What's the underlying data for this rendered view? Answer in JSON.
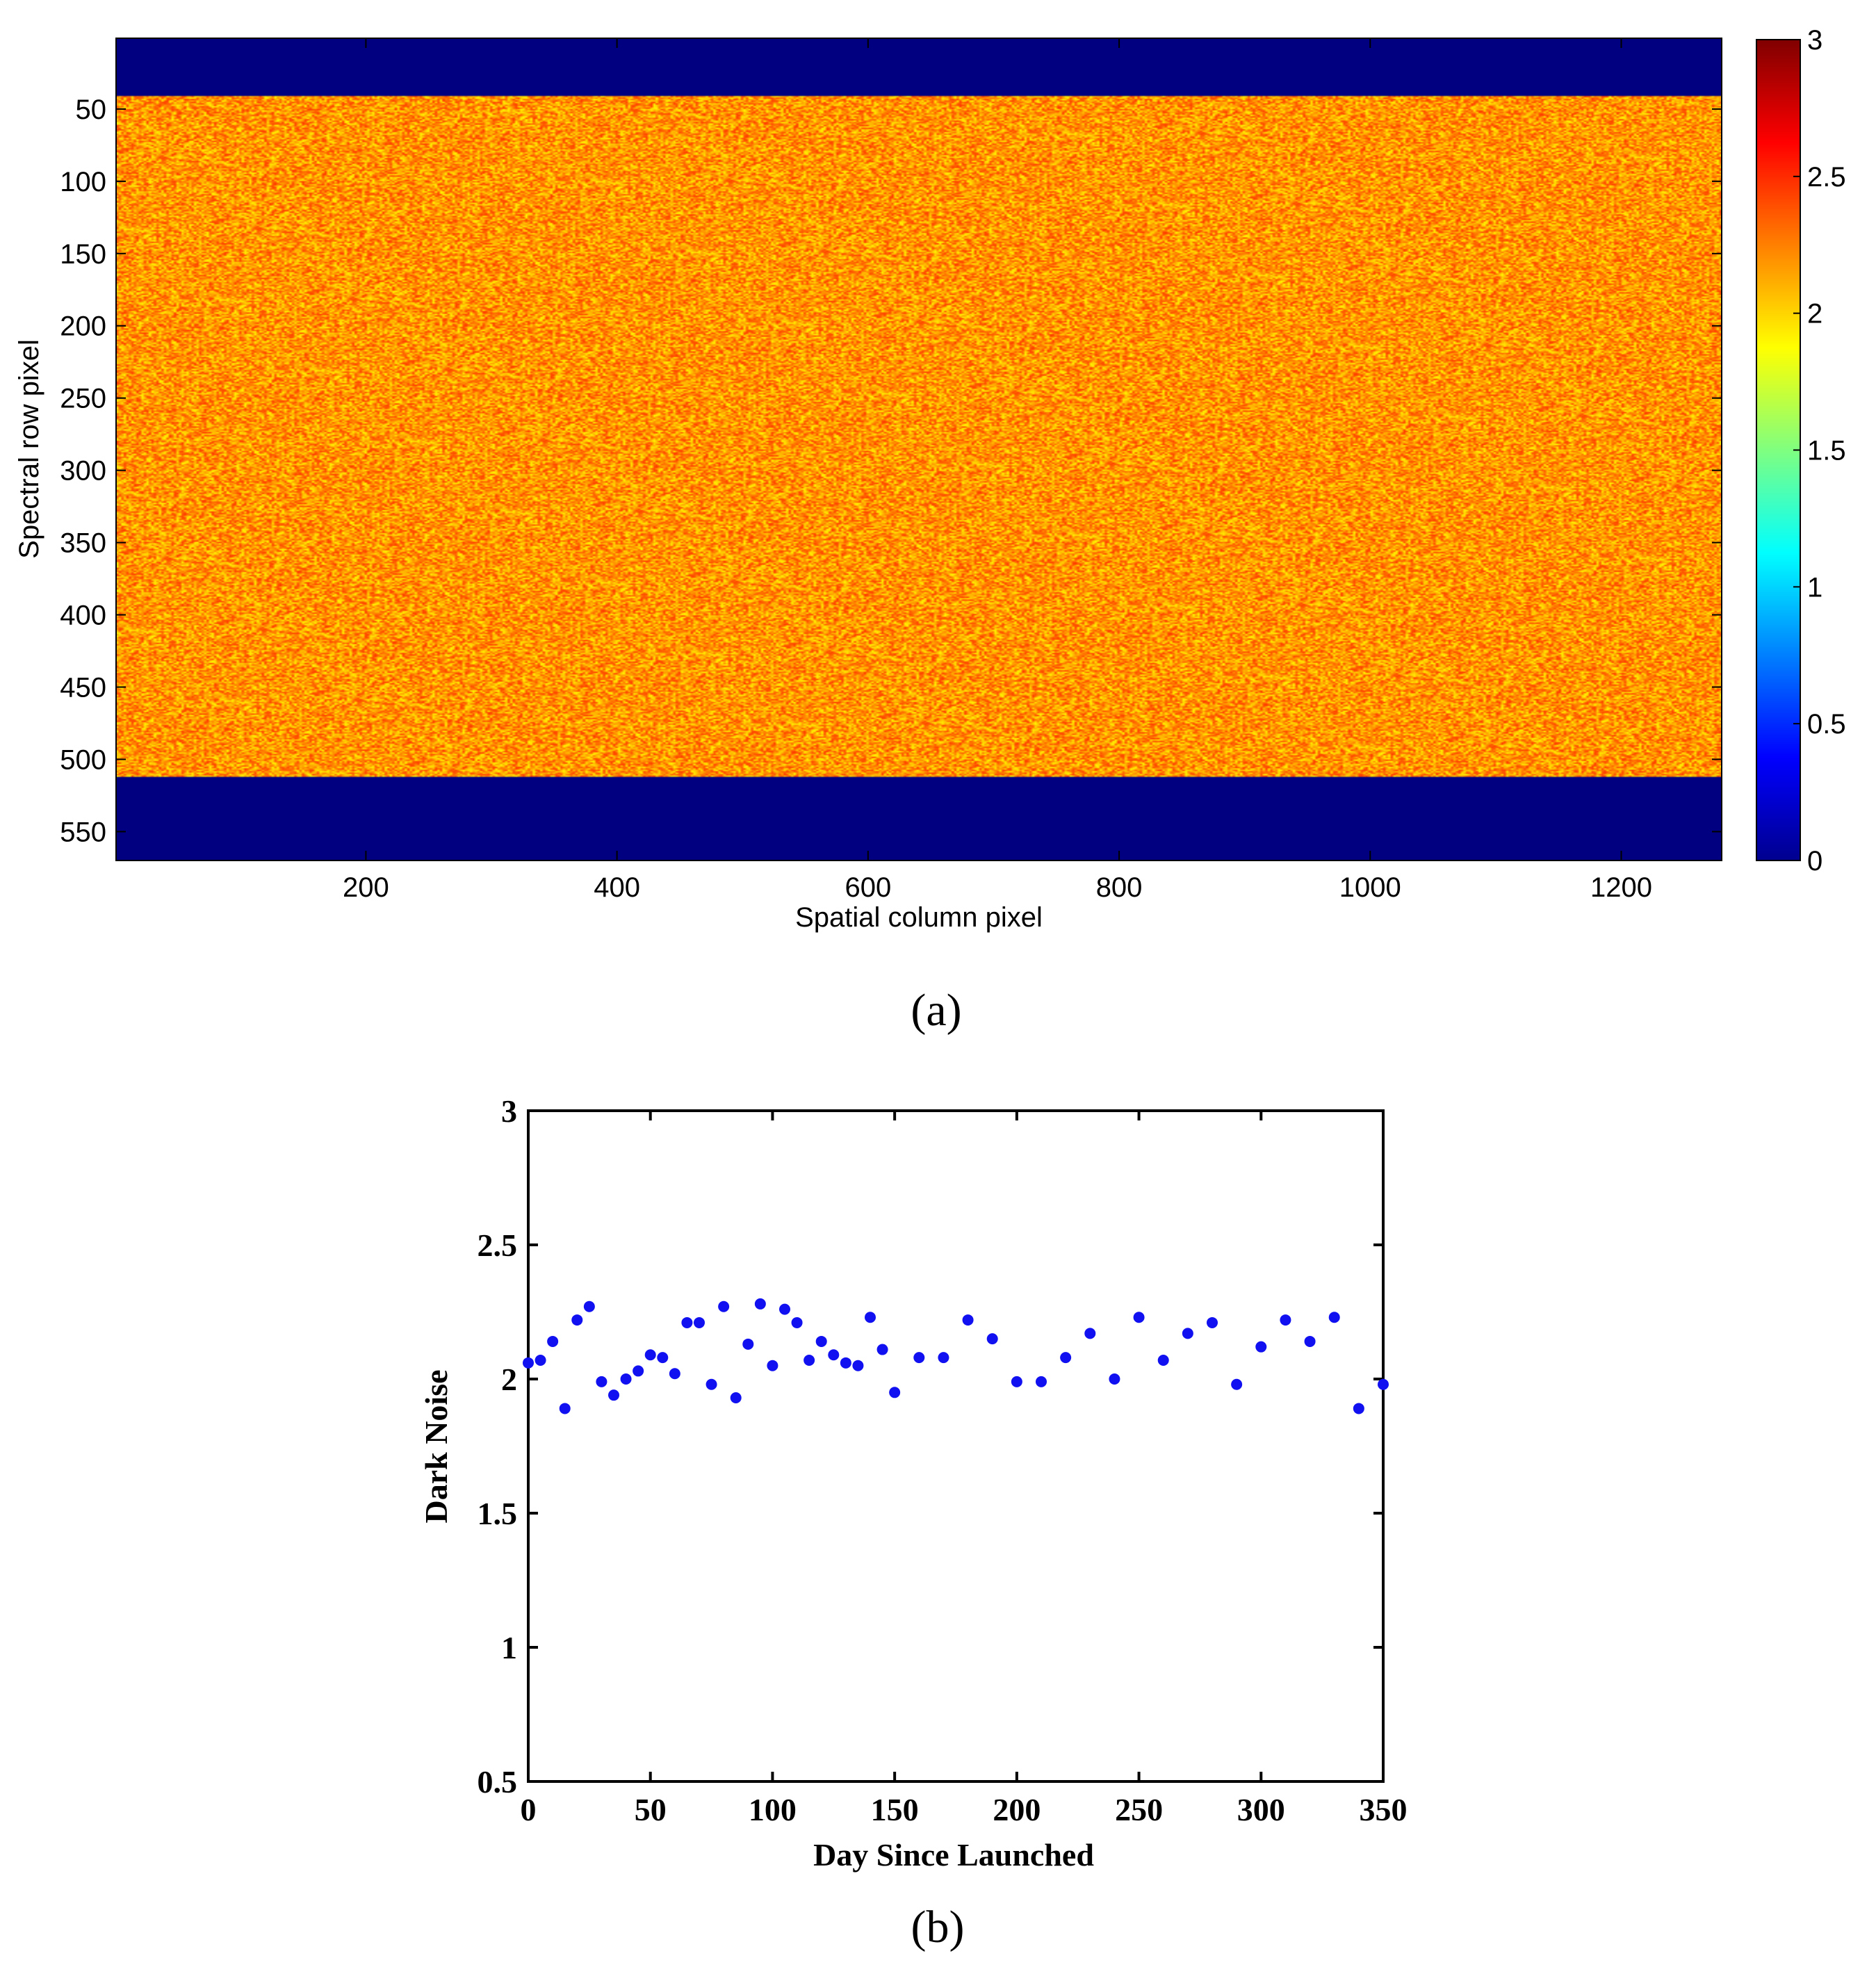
{
  "chart_data": [
    {
      "type": "heatmap",
      "panel_label": "(a)",
      "xlabel": "Spatial column pixel",
      "ylabel": "Spectral row pixel",
      "xlim": [
        1,
        1280
      ],
      "ylim": [
        570,
        1
      ],
      "x_ticks": [
        200,
        400,
        600,
        800,
        1000,
        1200
      ],
      "y_ticks": [
        50,
        100,
        150,
        200,
        250,
        300,
        350,
        400,
        450,
        500,
        550
      ],
      "colorbar": {
        "colormap": "jet",
        "range": [
          0,
          3
        ],
        "ticks": [
          0,
          0.5,
          1,
          1.5,
          2,
          2.5,
          3
        ],
        "tick_labels": [
          "0",
          "0.5",
          "1",
          "1.5",
          "2",
          "2.5",
          "3"
        ]
      },
      "regions": [
        {
          "rows": [
            1,
            40
          ],
          "value": 0
        },
        {
          "rows": [
            41,
            512
          ],
          "value_mean": 2.15,
          "value_range": [
            1.9,
            2.45
          ],
          "pattern": "random noise"
        },
        {
          "rows": [
            513,
            570
          ],
          "value": 0
        }
      ]
    },
    {
      "type": "scatter",
      "panel_label": "(b)",
      "xlabel": "Day Since Launched",
      "ylabel": "Dark Noise",
      "xlim": [
        0,
        350
      ],
      "ylim": [
        0.5,
        3
      ],
      "x_ticks": [
        0,
        50,
        100,
        150,
        200,
        250,
        300,
        350
      ],
      "y_ticks": [
        0.5,
        1,
        1.5,
        2,
        2.5,
        3
      ],
      "y_tick_labels": [
        "0.5",
        "1",
        "1.5",
        "2",
        "2.5",
        "3"
      ],
      "marker_color": "#1010f0",
      "x": [
        0,
        5,
        10,
        15,
        20,
        25,
        30,
        35,
        40,
        45,
        50,
        55,
        60,
        65,
        70,
        75,
        80,
        85,
        90,
        95,
        100,
        105,
        110,
        115,
        120,
        125,
        130,
        135,
        140,
        145,
        150,
        160,
        170,
        180,
        190,
        200,
        210,
        220,
        230,
        240,
        250,
        260,
        270,
        280,
        290,
        300,
        310,
        320,
        330,
        340,
        350
      ],
      "y": [
        2.06,
        2.07,
        2.14,
        1.89,
        2.22,
        2.27,
        1.99,
        1.94,
        2.0,
        2.03,
        2.09,
        2.08,
        2.02,
        2.21,
        2.21,
        1.98,
        2.27,
        1.93,
        2.13,
        2.28,
        2.05,
        2.26,
        2.21,
        2.07,
        2.14,
        2.09,
        2.06,
        2.05,
        2.23,
        2.11,
        1.95,
        2.08,
        2.08,
        2.22,
        2.15,
        1.99,
        1.99,
        2.08,
        2.17,
        2.0,
        2.23,
        2.07,
        2.17,
        2.21,
        1.98,
        2.12,
        2.22,
        2.14,
        2.23,
        1.89,
        1.98
      ]
    }
  ]
}
